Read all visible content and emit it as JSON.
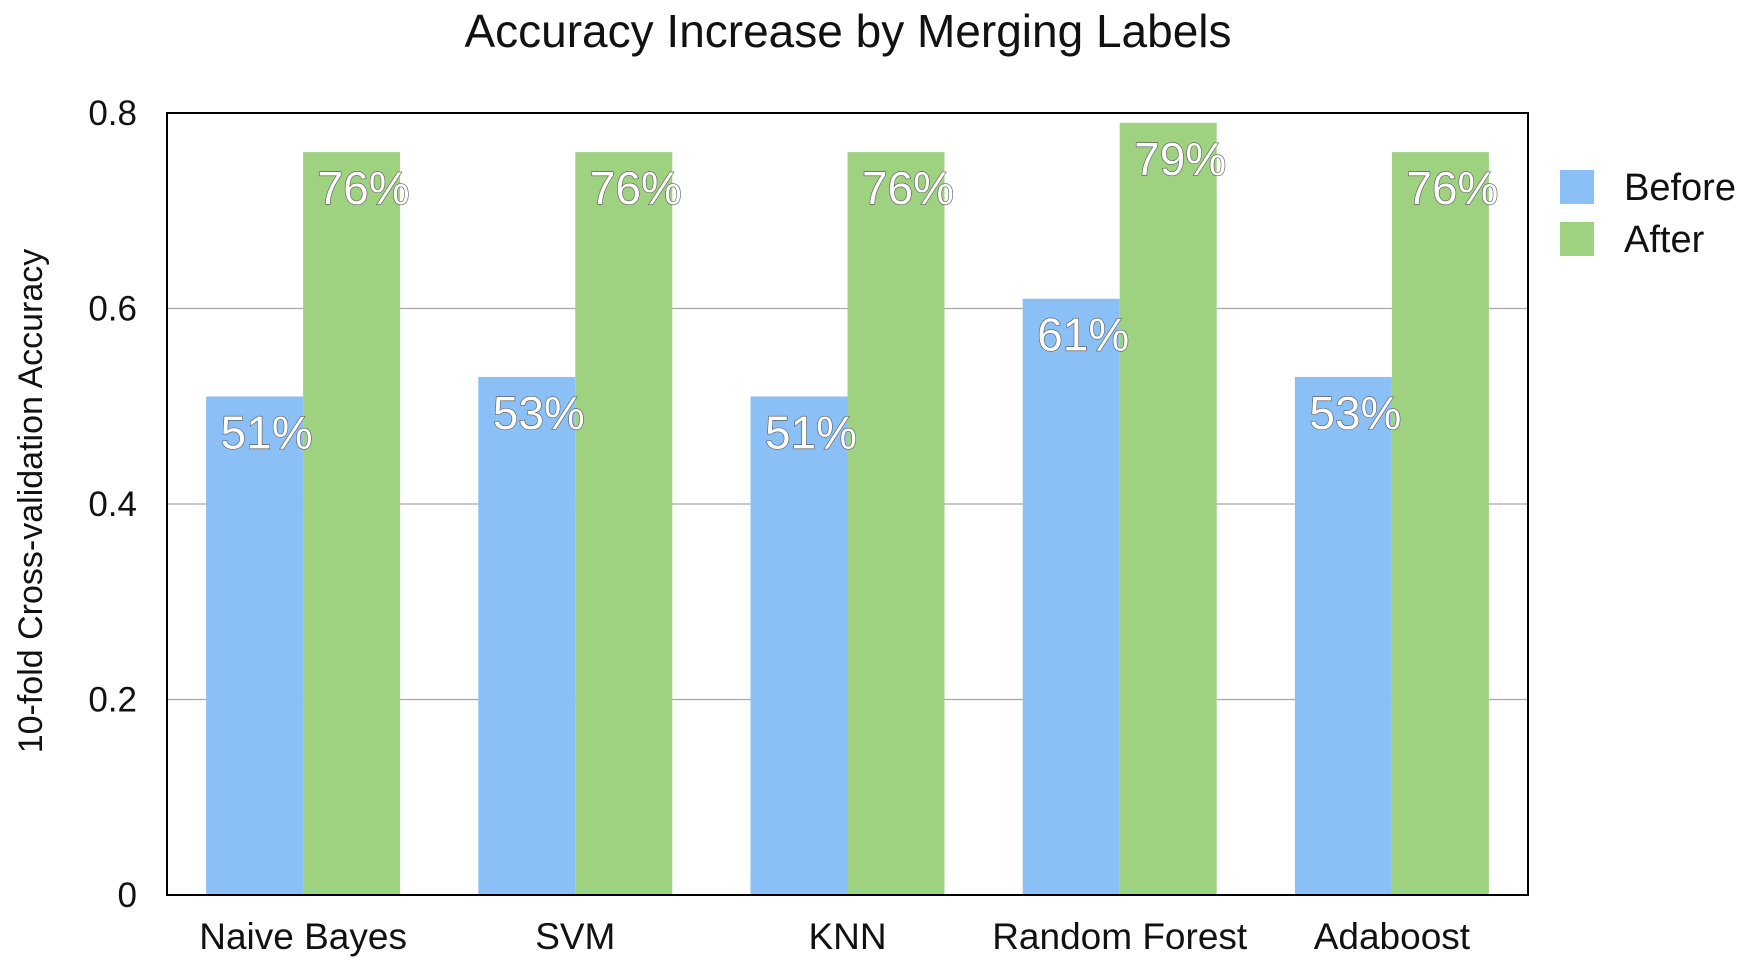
{
  "chart_data": {
    "type": "bar",
    "title": "Accuracy Increase by Merging Labels",
    "xlabel": "",
    "ylabel": "10-fold Cross-validation Accuracy",
    "categories": [
      "Naive Bayes",
      "SVM",
      "KNN",
      "Random Forest",
      "Adaboost"
    ],
    "series": [
      {
        "name": "Before",
        "color": "#8bc0f6",
        "values": [
          0.51,
          0.53,
          0.51,
          0.61,
          0.53
        ],
        "labels": [
          "51%",
          "53%",
          "51%",
          "61%",
          "53%"
        ]
      },
      {
        "name": "After",
        "color": "#9ed180",
        "values": [
          0.76,
          0.76,
          0.76,
          0.79,
          0.76
        ],
        "labels": [
          "76%",
          "76%",
          "76%",
          "79%",
          "76%"
        ]
      }
    ],
    "ylim": [
      0,
      0.8
    ],
    "yticks": [
      {
        "value": 0,
        "label": "0"
      },
      {
        "value": 0.2,
        "label": "0.2"
      },
      {
        "value": 0.4,
        "label": "0.4"
      },
      {
        "value": 0.6,
        "label": "0.6"
      },
      {
        "value": 0.8,
        "label": "0.8"
      }
    ],
    "grid": true,
    "legend_position": "right"
  }
}
